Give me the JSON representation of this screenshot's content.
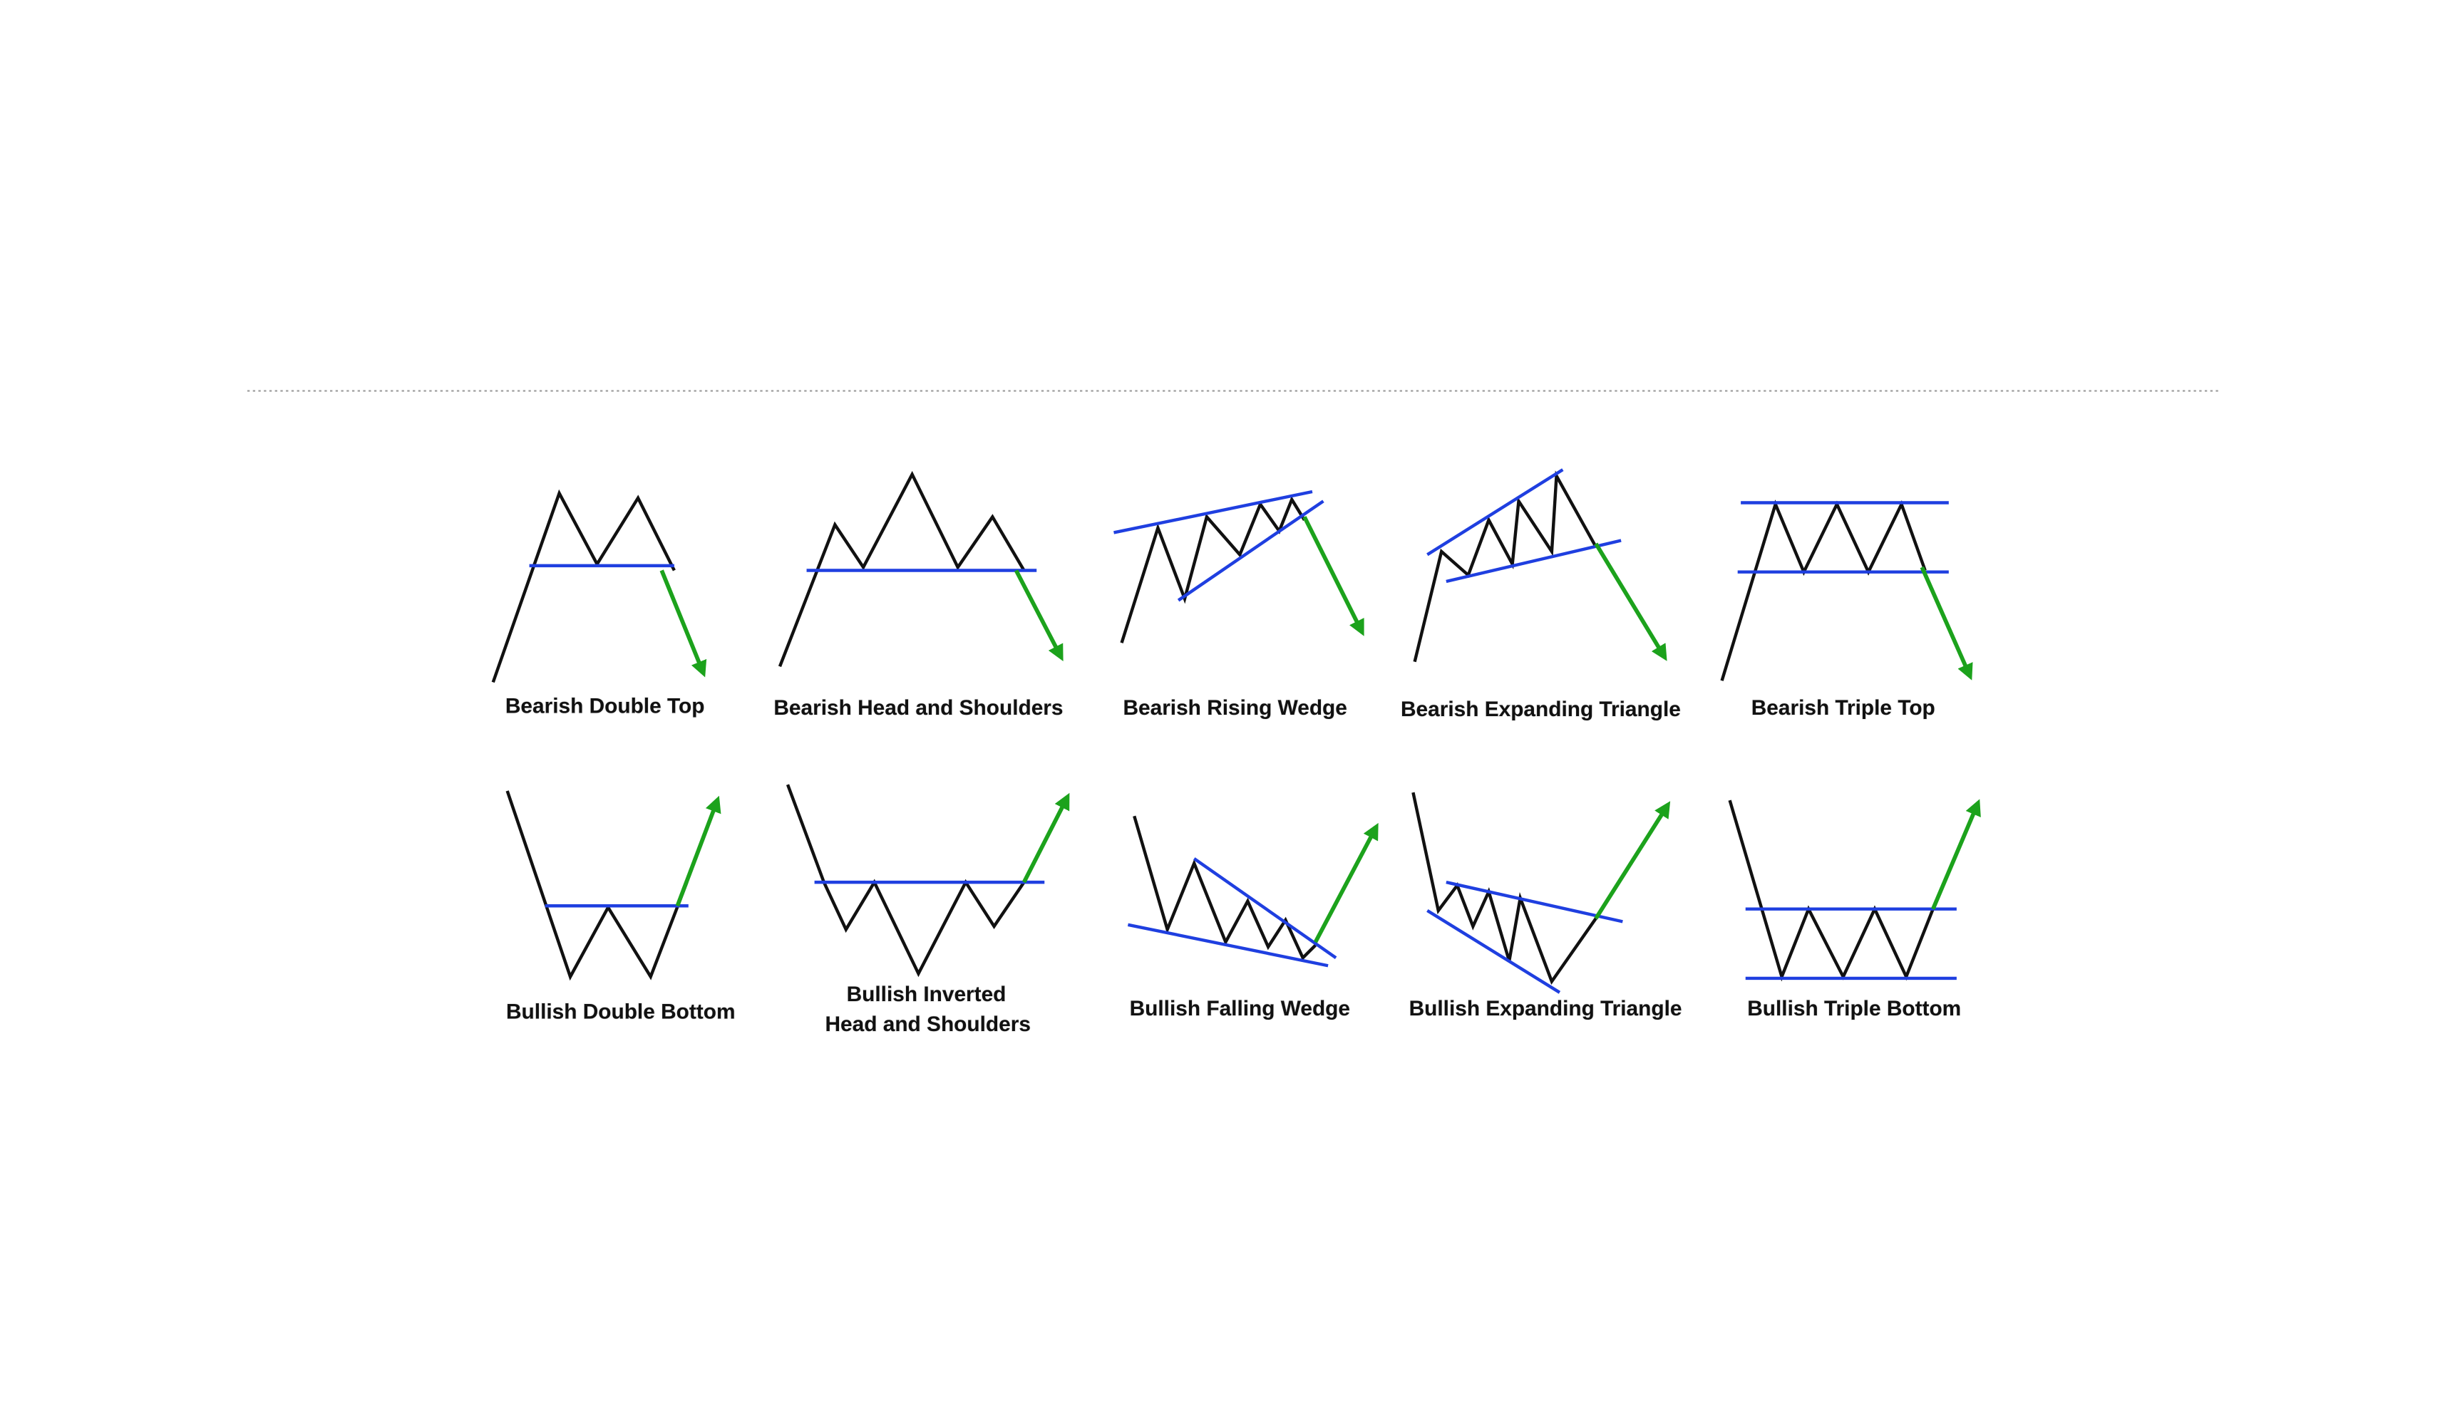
{
  "patterns": [
    {
      "lines": [
        "Bearish Double Top"
      ]
    },
    {
      "lines": [
        "Bearish Head and Shoulders"
      ]
    },
    {
      "lines": [
        "Bearish Rising Wedge"
      ]
    },
    {
      "lines": [
        "Bearish Expanding Triangle"
      ]
    },
    {
      "lines": [
        "Bearish Triple Top"
      ]
    },
    {
      "lines": [
        "Bullish Double Bottom"
      ]
    },
    {
      "lines": [
        "Bullish Inverted",
        "Head and Shoulders"
      ]
    },
    {
      "lines": [
        "Bullish Falling Wedge"
      ]
    },
    {
      "lines": [
        "Bullish Expanding Triangle"
      ]
    },
    {
      "lines": [
        "Bullish Triple Bottom"
      ]
    }
  ]
}
